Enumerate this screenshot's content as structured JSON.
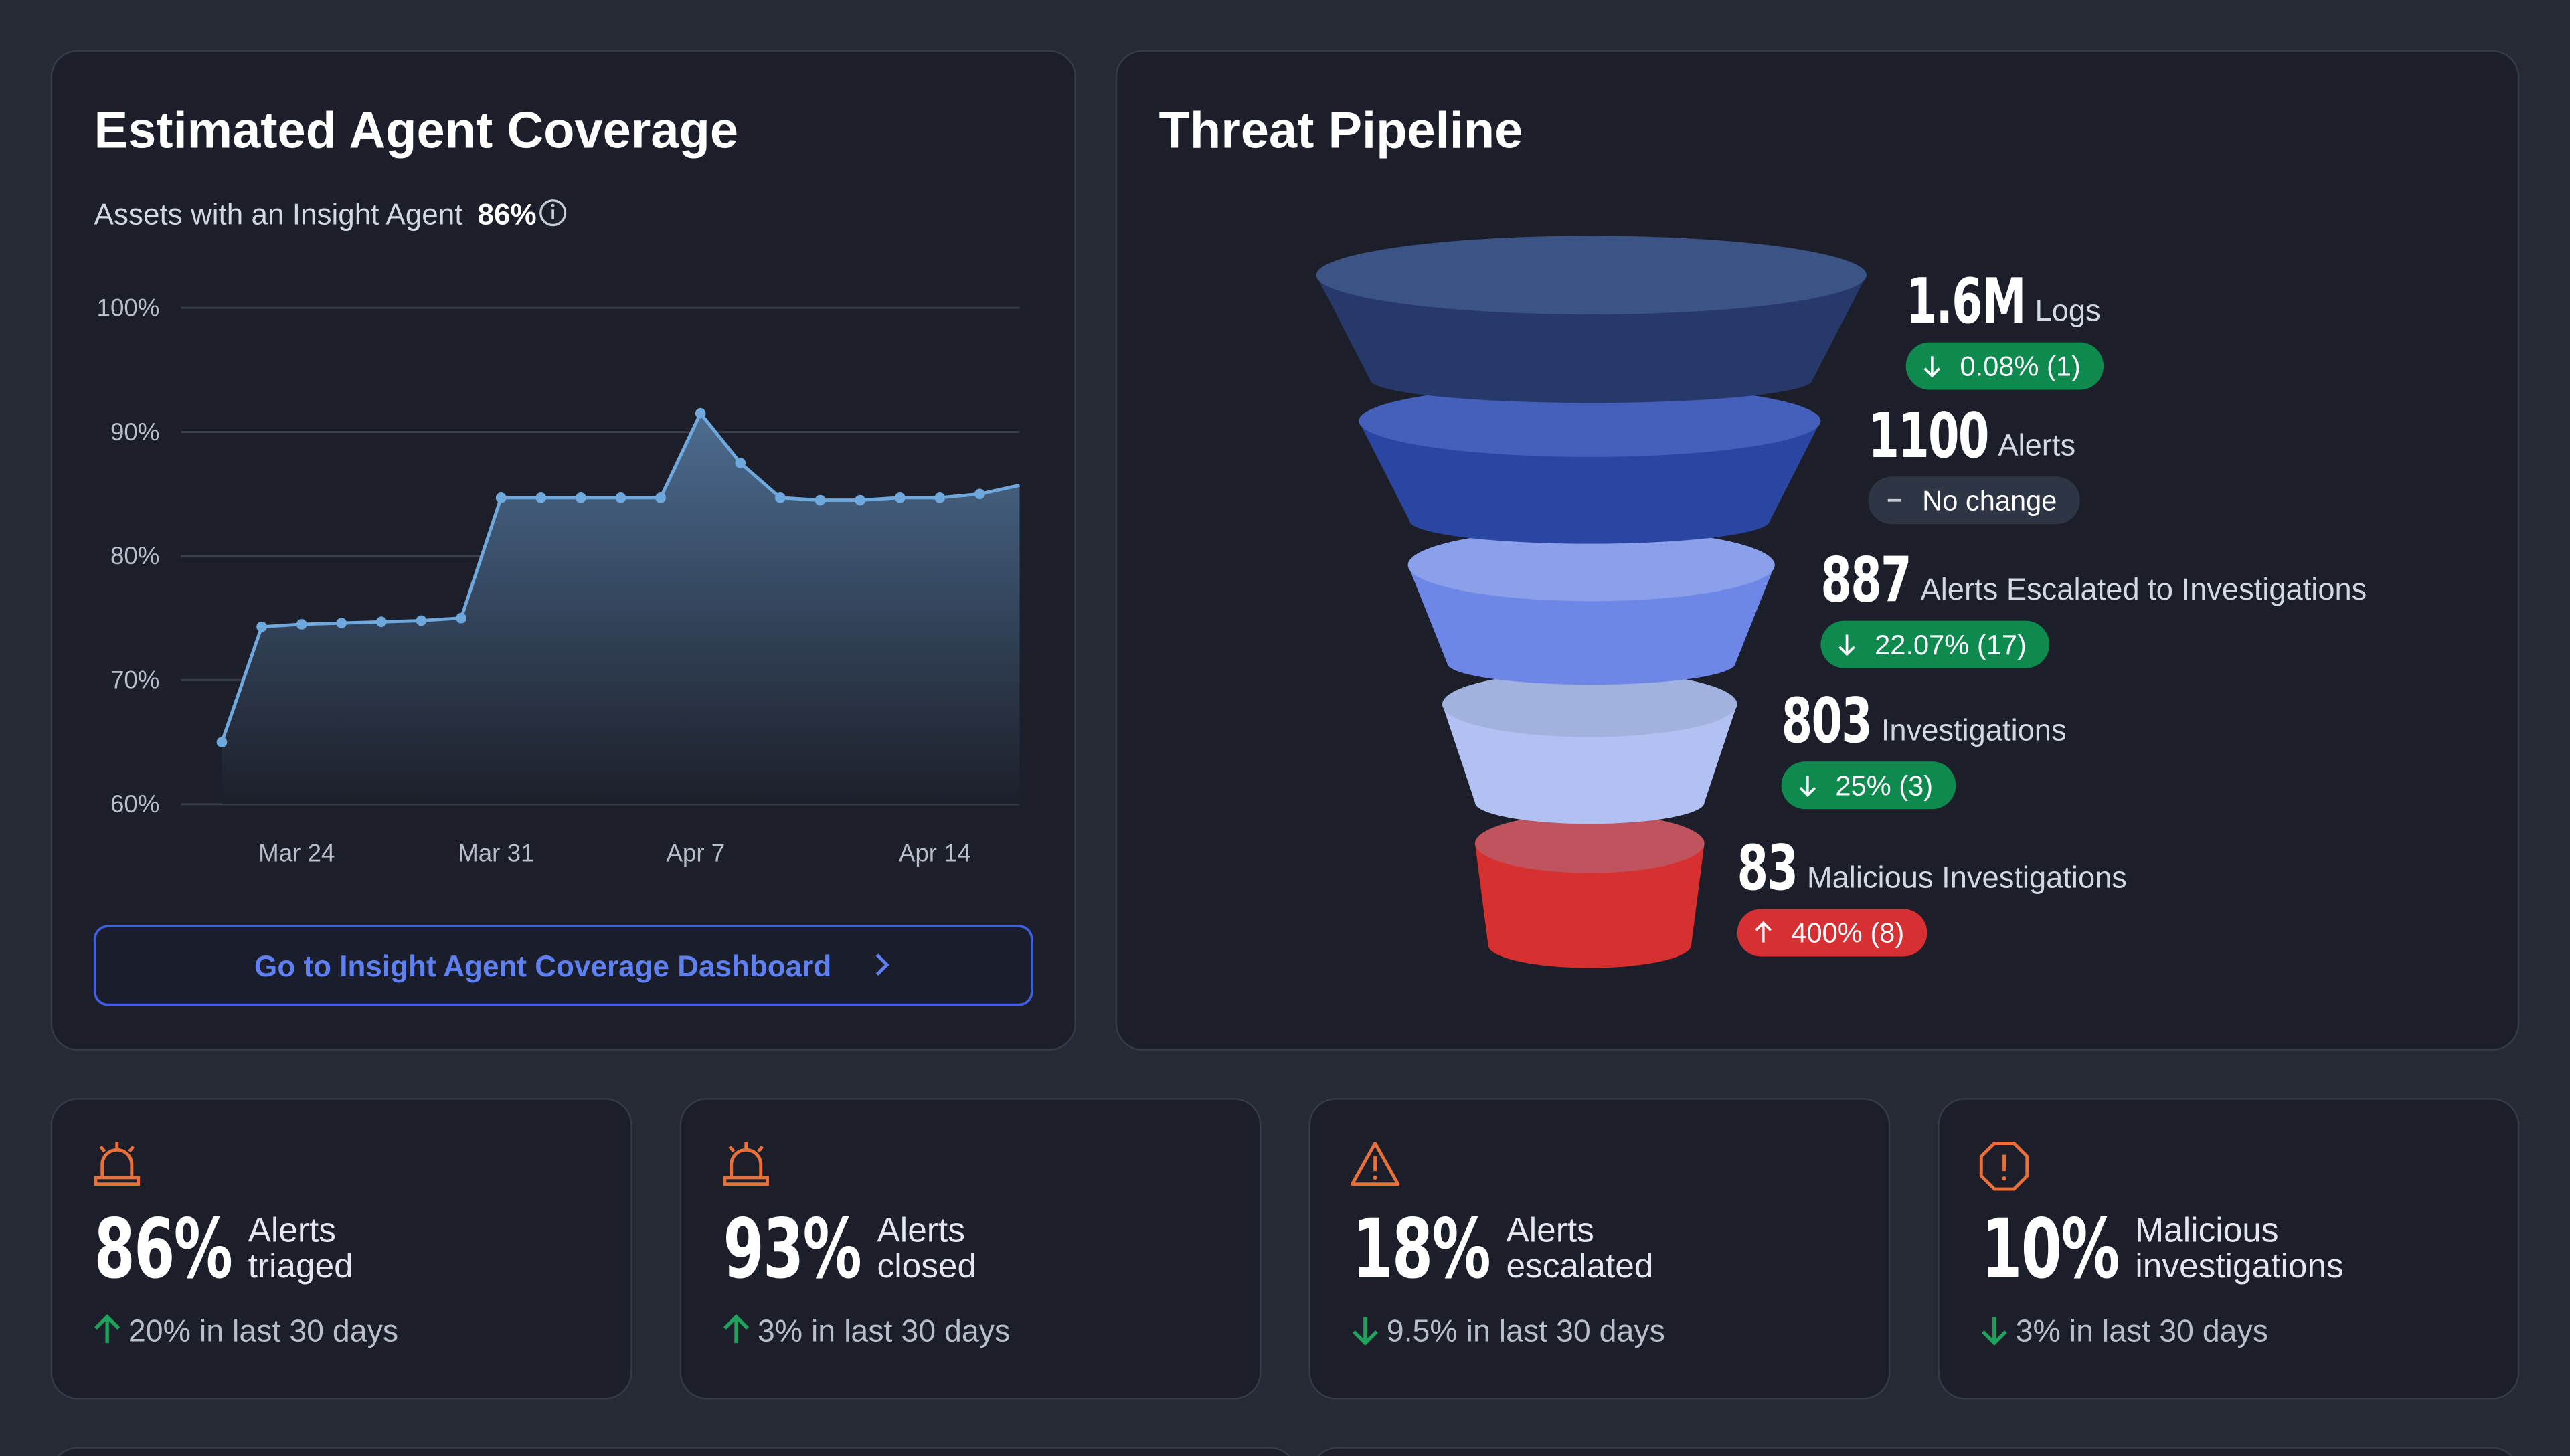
{
  "chart_data": {
    "type": "line",
    "categories": [
      null,
      null,
      "Mar 24",
      null,
      null,
      null,
      null,
      "Mar 31",
      null,
      null,
      null,
      null,
      "Apr 7",
      null,
      null,
      null,
      null,
      null,
      "Apr 14",
      null,
      null
    ],
    "values": [
      65,
      74.3,
      74.5,
      74.6,
      74.7,
      74.8,
      75,
      84.7,
      84.7,
      84.7,
      84.7,
      84.7,
      91.5,
      87.5,
      84.7,
      84.5,
      84.5,
      84.7,
      84.7,
      85,
      85.7
    ],
    "color": "#6fa8dc",
    "ylim": [
      60,
      100
    ],
    "yticks": [
      {
        "value": 60,
        "label": "60%"
      },
      {
        "value": 70,
        "label": "70%"
      },
      {
        "value": 80,
        "label": "80%"
      },
      {
        "value": 90,
        "label": "90%"
      },
      {
        "value": 100,
        "label": "100%"
      }
    ],
    "grid": true
  },
  "coverage": {
    "title": "Estimated Agent Coverage",
    "subtitle": "Assets with an Insight Agent",
    "subtitle_value": "86%",
    "button": "Go to Insight Agent Coverage Dashboard"
  },
  "pipeline": {
    "title": "Threat Pipeline",
    "stages": [
      {
        "value": "1.6M",
        "name": "Logs",
        "change": "0.08% (1)",
        "direction": "down"
      },
      {
        "value": "1100",
        "name": "Alerts",
        "change": "No change",
        "direction": "none"
      },
      {
        "value": "887",
        "name": "Alerts Escalated to Investigations",
        "change": "22.07% (17)",
        "direction": "down"
      },
      {
        "value": "803",
        "name": "Investigations",
        "change": "25% (3)",
        "direction": "down"
      },
      {
        "value": "83",
        "name": "Malicious Investigations",
        "change": "400% (8)",
        "direction": "up"
      }
    ]
  },
  "kpis": [
    {
      "value": "86%",
      "label": [
        "Alerts",
        "triaged"
      ],
      "trend": "20% in last 30 days",
      "direction": "up"
    },
    {
      "value": "93%",
      "label": [
        "Alerts",
        "closed"
      ],
      "trend": "3% in last 30 days",
      "direction": "up"
    },
    {
      "value": "18%",
      "label": [
        "Alerts",
        "escalated"
      ],
      "trend": "9.5% in last 30 days",
      "direction": "down"
    },
    {
      "value": "10%",
      "label": [
        "Malicious",
        "investigations"
      ],
      "trend": "3% in last 30 days",
      "direction": "down"
    }
  ]
}
